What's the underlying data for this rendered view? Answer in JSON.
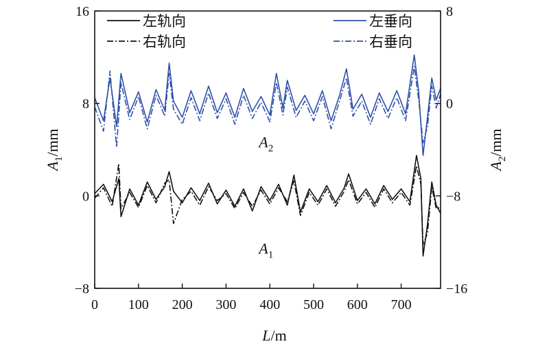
{
  "chart_data": {
    "type": "line",
    "title": "",
    "x": {
      "label": "L/m",
      "label_var": "L",
      "label_unit": "/m",
      "range": [
        0,
        790
      ],
      "ticks": [
        0,
        100,
        200,
        300,
        400,
        500,
        600,
        700
      ]
    },
    "y_left": {
      "label": "A1/mm",
      "label_var": "A",
      "label_sub": "1",
      "label_unit": "/mm",
      "range": [
        -8,
        16
      ],
      "ticks": [
        -8,
        0,
        8,
        16
      ],
      "tick_labels": [
        "−8",
        "0",
        "8",
        "16"
      ]
    },
    "y_right": {
      "label": "A2/mm",
      "label_var": "A",
      "label_sub": "2",
      "label_unit": "/mm",
      "range": [
        -16,
        8
      ],
      "ticks": [
        -16,
        -8,
        0,
        8
      ],
      "tick_labels": [
        "−16",
        "−8",
        "0",
        "8"
      ]
    },
    "legend": {
      "placement": "top",
      "items": [
        {
          "name": "左轨向",
          "color": "#111111",
          "dash": "solid",
          "column": "left"
        },
        {
          "name": "右轨向",
          "color": "#111111",
          "dash": "dashdot",
          "column": "left"
        },
        {
          "name": "左垂向",
          "color": "#2e4fa8",
          "dash": "solid",
          "column": "right"
        },
        {
          "name": "右垂向",
          "color": "#2e4fa8",
          "dash": "dashdot",
          "column": "right"
        }
      ]
    },
    "annotations": [
      {
        "text": "A",
        "sub": "2",
        "x": 375,
        "y_left": 4.2
      },
      {
        "text": "A",
        "sub": "1",
        "x": 375,
        "y_left": -5.0
      }
    ],
    "series": [
      {
        "name": "左轨向",
        "axis": "left",
        "color": "#111111",
        "dash": "solid",
        "x": [
          0,
          20,
          40,
          55,
          60,
          80,
          100,
          120,
          140,
          160,
          170,
          180,
          200,
          220,
          240,
          260,
          280,
          300,
          320,
          340,
          360,
          380,
          400,
          420,
          440,
          455,
          470,
          490,
          510,
          530,
          550,
          570,
          580,
          600,
          620,
          640,
          660,
          680,
          700,
          720,
          735,
          745,
          750,
          760,
          770,
          780,
          790
        ],
        "values": [
          0.2,
          1.0,
          -0.5,
          1.5,
          -1.8,
          0.6,
          -0.8,
          1.2,
          -0.3,
          0.8,
          2.1,
          0.4,
          -0.6,
          0.7,
          -0.4,
          1.1,
          -0.7,
          0.5,
          -0.9,
          0.6,
          -1.3,
          0.8,
          -0.4,
          1.0,
          -0.8,
          1.8,
          -1.4,
          0.6,
          -0.5,
          0.9,
          -0.6,
          0.7,
          1.9,
          -0.4,
          0.6,
          -0.7,
          0.9,
          -0.3,
          0.6,
          -0.5,
          3.5,
          1.5,
          -5.2,
          -2.5,
          1.2,
          -0.8,
          -1.5
        ]
      },
      {
        "name": "右轨向",
        "axis": "left",
        "color": "#111111",
        "dash": "dashdot",
        "x": [
          0,
          20,
          40,
          55,
          60,
          80,
          100,
          120,
          140,
          160,
          170,
          180,
          200,
          220,
          240,
          260,
          280,
          300,
          320,
          340,
          360,
          380,
          400,
          420,
          440,
          455,
          470,
          490,
          510,
          530,
          550,
          570,
          580,
          600,
          620,
          640,
          660,
          680,
          700,
          720,
          735,
          745,
          750,
          760,
          770,
          780,
          790
        ],
        "values": [
          -0.2,
          0.7,
          -0.9,
          2.8,
          -1.1,
          0.3,
          -1.0,
          0.9,
          -0.6,
          1.1,
          1.4,
          -2.4,
          -0.3,
          0.4,
          -0.8,
          0.8,
          -0.4,
          0.2,
          -1.1,
          0.3,
          -0.9,
          0.5,
          -0.7,
          0.7,
          -0.5,
          1.3,
          -1.7,
          0.3,
          -0.8,
          0.6,
          -0.9,
          0.4,
          1.4,
          -0.7,
          0.3,
          -1.0,
          0.6,
          -0.6,
          0.3,
          -0.8,
          2.6,
          1.0,
          -4.3,
          -3.2,
          0.8,
          -1.1,
          -1.0
        ]
      },
      {
        "name": "左垂向",
        "axis": "right",
        "color": "#2e4fa8",
        "dash": "solid",
        "x": [
          0,
          20,
          35,
          50,
          60,
          80,
          100,
          120,
          140,
          160,
          170,
          180,
          200,
          220,
          240,
          260,
          280,
          300,
          320,
          340,
          360,
          380,
          400,
          415,
          430,
          440,
          460,
          480,
          500,
          520,
          540,
          560,
          575,
          590,
          610,
          630,
          650,
          670,
          690,
          710,
          730,
          740,
          750,
          760,
          770,
          780,
          790
        ],
        "values": [
          0.5,
          -1.5,
          2.2,
          -2.0,
          2.6,
          -0.8,
          1.0,
          -1.6,
          1.2,
          -0.6,
          3.5,
          0.2,
          -1.2,
          1.1,
          -0.9,
          1.5,
          -0.8,
          0.9,
          -1.2,
          1.3,
          -0.7,
          0.6,
          -1.0,
          2.6,
          -0.4,
          2.0,
          -0.6,
          0.7,
          -0.9,
          1.1,
          -1.5,
          0.8,
          3.0,
          -0.5,
          0.8,
          -1.2,
          0.9,
          -0.7,
          1.1,
          -0.9,
          4.2,
          1.0,
          -4.5,
          -1.2,
          2.2,
          0.3,
          1.3
        ]
      },
      {
        "name": "右垂向",
        "axis": "right",
        "color": "#2e4fa8",
        "dash": "dashdot",
        "x": [
          0,
          20,
          35,
          50,
          60,
          80,
          100,
          120,
          140,
          160,
          170,
          180,
          200,
          220,
          240,
          260,
          280,
          300,
          320,
          340,
          360,
          380,
          400,
          415,
          430,
          440,
          460,
          480,
          500,
          520,
          540,
          560,
          575,
          590,
          610,
          630,
          650,
          670,
          690,
          710,
          730,
          740,
          750,
          760,
          770,
          780,
          790
        ],
        "values": [
          -0.3,
          -2.4,
          2.8,
          -3.8,
          1.8,
          -1.4,
          0.6,
          -2.2,
          0.7,
          -1.1,
          2.6,
          -0.5,
          -1.8,
          0.5,
          -1.5,
          0.9,
          -1.3,
          0.4,
          -1.8,
          0.7,
          -1.3,
          0.1,
          -1.6,
          1.8,
          -1.0,
          1.4,
          -1.2,
          0.2,
          -1.5,
          0.6,
          -2.2,
          0.3,
          2.2,
          -1.1,
          0.2,
          -1.8,
          0.4,
          -1.3,
          0.5,
          -1.5,
          3.2,
          0.3,
          -3.4,
          -2.0,
          1.5,
          -0.4,
          0.8
        ]
      }
    ]
  }
}
